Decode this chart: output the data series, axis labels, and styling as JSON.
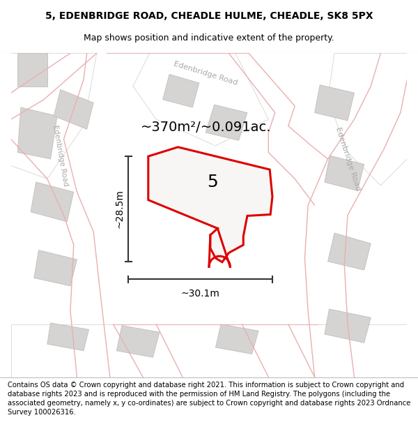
{
  "title": "5, EDENBRIDGE ROAD, CHEADLE HULME, CHEADLE, SK8 5PX",
  "subtitle": "Map shows position and indicative extent of the property.",
  "footer": "Contains OS data © Crown copyright and database right 2021. This information is subject to Crown copyright and database rights 2023 and is reproduced with the permission of HM Land Registry. The polygons (including the associated geometry, namely x, y co-ordinates) are subject to Crown copyright and database rights 2023 Ordnance Survey 100026316.",
  "area_label": "~370m²/~0.091ac.",
  "width_label": "~30.1m",
  "height_label": "~28.5m",
  "property_number": "5",
  "map_bg": "#f2f0ee",
  "road_fill": "#e8e6e4",
  "building_fill": "#d6d4d2",
  "building_stroke": "#c0bebb",
  "white_road_fill": "#ffffff",
  "red_color": "#dd0000",
  "pink_color": "#e8b0b0",
  "dim_color": "#333333",
  "road_label_color": "#aaaaaa",
  "title_fontsize": 10,
  "subtitle_fontsize": 9,
  "footer_fontsize": 7.2,
  "area_fontsize": 14,
  "number_fontsize": 18,
  "dim_fontsize": 10,
  "road_label_fontsize": 8
}
